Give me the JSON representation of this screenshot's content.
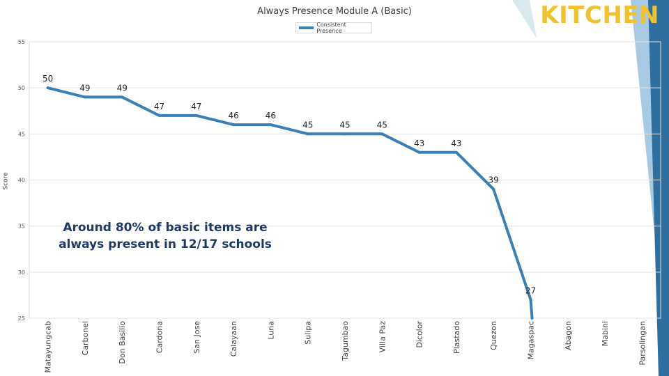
{
  "slide": {
    "title": "Always Presence Module A (Basic)",
    "section_label": "KITCHEN",
    "annotation": "Around 80% of basic items are always present in 12/17 schools",
    "colors": {
      "line": "#3a7fb8",
      "section_label": "#f2c22e",
      "annotation": "#1f3864",
      "decoration": "#2f6f9f"
    }
  },
  "chart_data": {
    "type": "line",
    "title": "Always Presence Module A (Basic)",
    "xlabel": "",
    "ylabel": "Score",
    "ylim": [
      25,
      55
    ],
    "yticks": [
      25,
      30,
      35,
      40,
      45,
      50,
      55
    ],
    "grid": true,
    "legend_position": "top-center",
    "categories": [
      "Matayungcab",
      "Carbonel",
      "Don Basilio",
      "Cardona",
      "San Jose",
      "Calayaan",
      "Luna",
      "Sulipa",
      "Tagumbao",
      "Villa Paz",
      "Dicolor",
      "Plastado",
      "Quezon",
      "Magaspac",
      "Abagon",
      "Mabini",
      "Parsolingan"
    ],
    "series": [
      {
        "name": "Consistent Presence",
        "values": [
          50,
          49,
          49,
          47,
          47,
          46,
          46,
          45,
          45,
          45,
          43,
          43,
          39,
          27,
          null,
          null,
          null
        ],
        "data_labels": [
          "50",
          "49",
          "49",
          "47",
          "47",
          "46",
          "46",
          "45",
          "45",
          "45",
          "43",
          "43",
          "39",
          "27",
          "",
          "",
          ""
        ]
      }
    ]
  }
}
